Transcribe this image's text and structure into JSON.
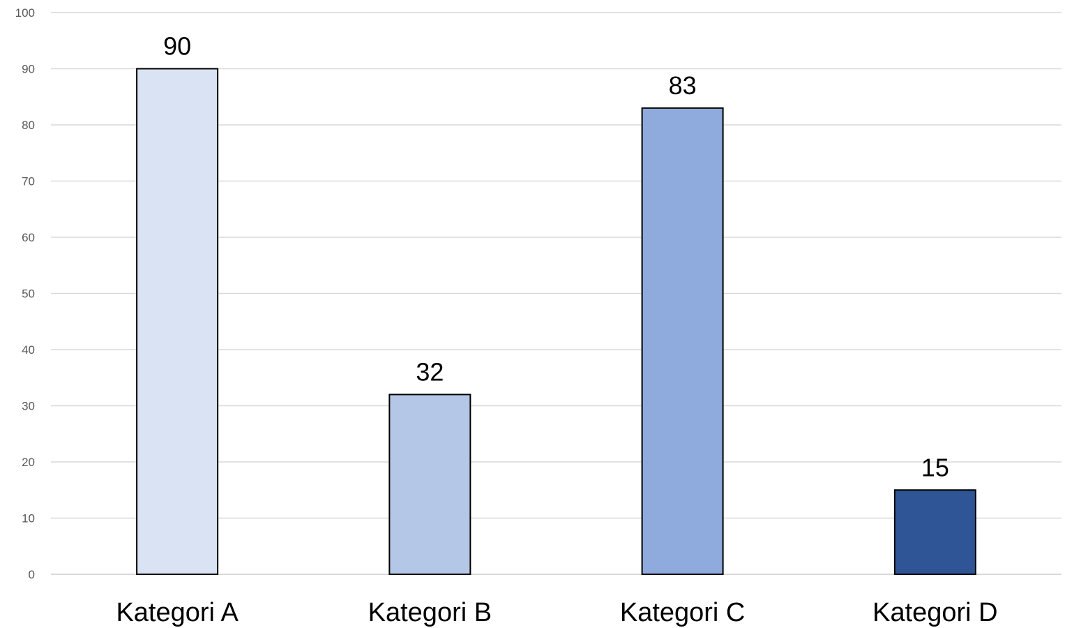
{
  "chart_data": {
    "type": "bar",
    "categories": [
      "Kategori A",
      "Kategori B",
      "Kategori C",
      "Kategori D"
    ],
    "values": [
      90,
      32,
      83,
      15
    ],
    "data_labels": [
      "90",
      "32",
      "83",
      "15"
    ],
    "bar_colors": [
      "#dae3f3",
      "#b4c7e7",
      "#8faadc",
      "#2f5597"
    ],
    "ylim": [
      0,
      100
    ],
    "yticks": [
      0,
      10,
      20,
      30,
      40,
      50,
      60,
      70,
      80,
      90,
      100
    ],
    "grid": true,
    "title": "",
    "xlabel": "",
    "ylabel": ""
  }
}
